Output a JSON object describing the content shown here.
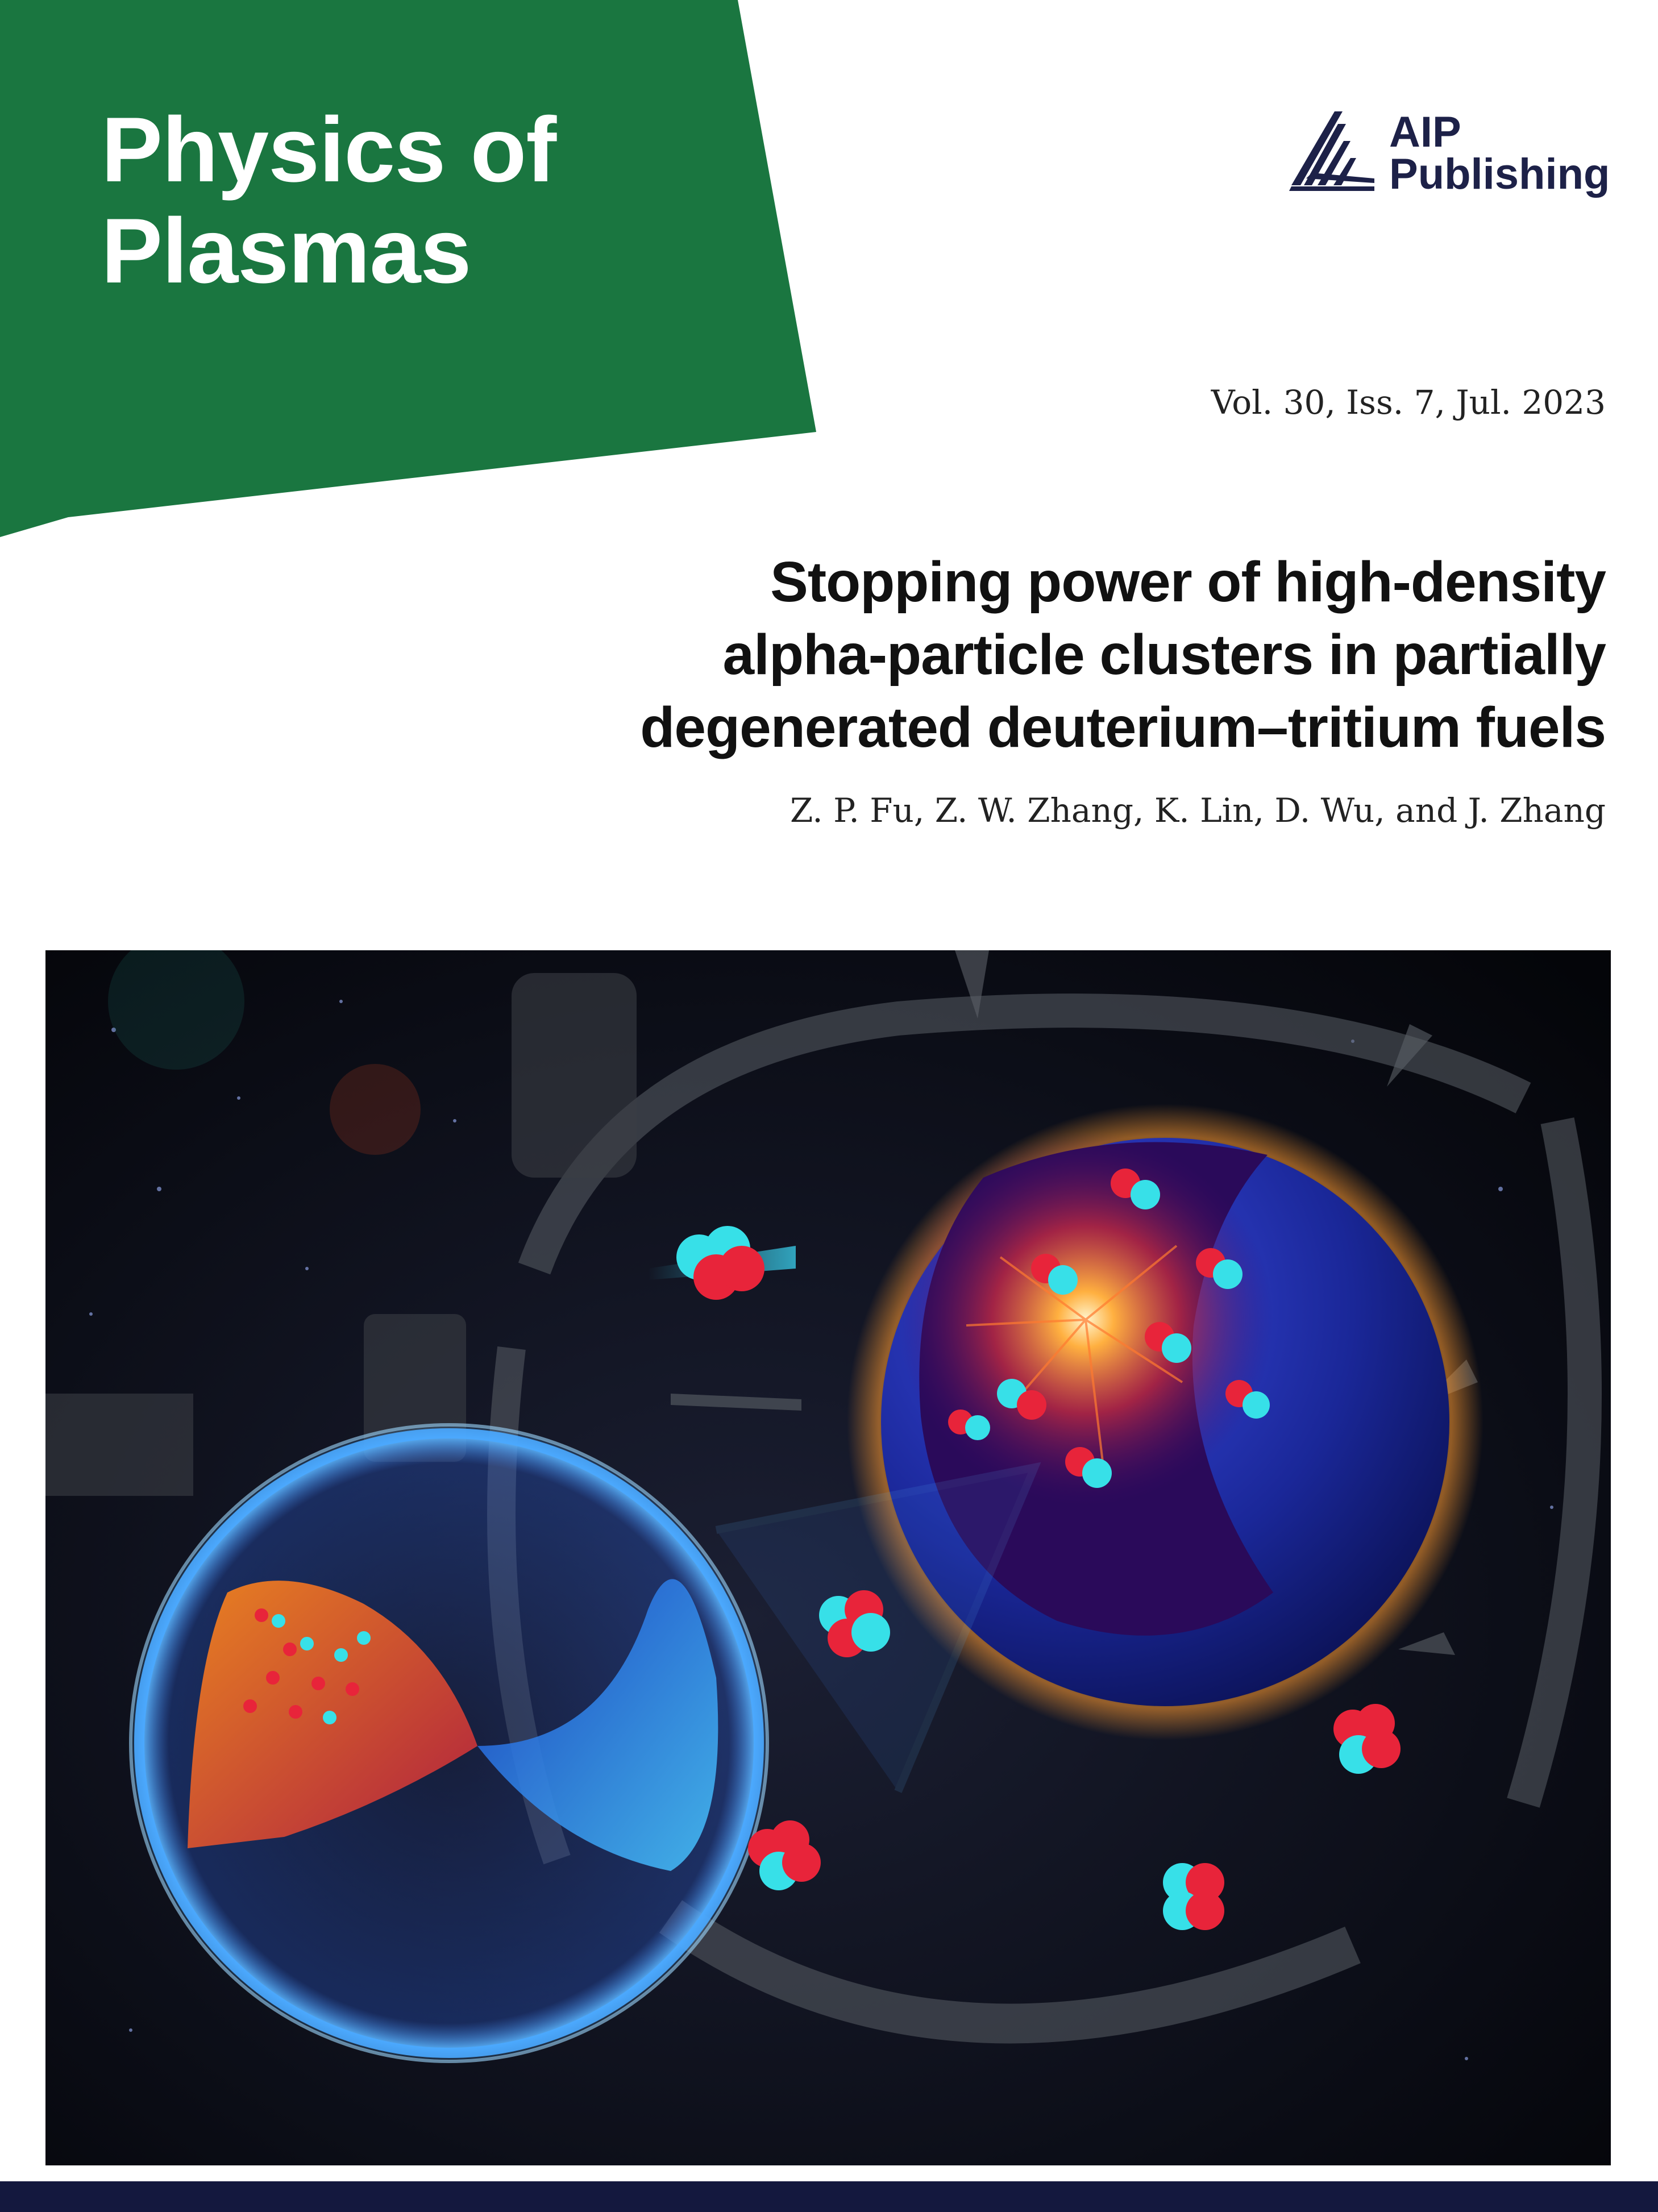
{
  "journal": {
    "title_line1": "Physics of",
    "title_line2": "Plasmas",
    "banner_color": "#1a7640"
  },
  "publisher": {
    "line1": "AIP",
    "line2": "Publishing",
    "icon": "aip-fan-logo-icon",
    "color": "#1d2148"
  },
  "issue": "Vol. 30, Iss. 7, Jul. 2023",
  "article": {
    "title_lines": [
      "Stopping power of high-density",
      "alpha-particle clusters in partially",
      "degenerated deuterium–tritium fuels"
    ],
    "authors": "Z. P. Fu, Z. W. Zhang, K. Lin, D. Wu, and J. Zhang"
  },
  "cover_image": {
    "icon": "alpha-particle-cluster-illustration",
    "colors": {
      "background": "#05070f",
      "sphere": "#1b2aa6",
      "ring": "#3fa0ff",
      "particle_red": "#e8243a",
      "particle_cyan": "#37e0e8"
    }
  },
  "footer_bar_color": "#14183e"
}
